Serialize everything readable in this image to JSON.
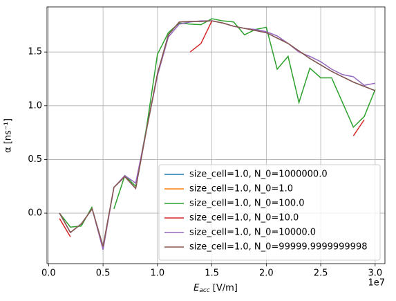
{
  "chart_data": {
    "type": "line",
    "ylabel": "α [ns⁻¹]",
    "xlabel": {
      "symbol": "E",
      "subscript": "acc",
      "unit": "[V/m]"
    },
    "x_offset_text": "1e7",
    "x": [
      0.1,
      0.2,
      0.3,
      0.4,
      0.5,
      0.6,
      0.7,
      0.8,
      0.9,
      1.0,
      1.1,
      1.2,
      1.3,
      1.4,
      1.5,
      1.6,
      1.7,
      1.8,
      1.9,
      2.0,
      2.1,
      2.2,
      2.3,
      2.4,
      2.5,
      2.6,
      2.7,
      2.8,
      2.9,
      3.0
    ],
    "xlim": [
      -0.015,
      3.09
    ],
    "ylim": [
      -0.47,
      1.92
    ],
    "xticks": [
      {
        "value": 0,
        "label": "0.0"
      },
      {
        "value": 0.5,
        "label": "0.5"
      },
      {
        "value": 1,
        "label": "1.0"
      },
      {
        "value": 1.5,
        "label": "1.5"
      },
      {
        "value": 2,
        "label": "2.0"
      },
      {
        "value": 2.5,
        "label": "2.5"
      },
      {
        "value": 3,
        "label": "3.0"
      }
    ],
    "yticks": [
      {
        "value": 0,
        "label": "0.0"
      },
      {
        "value": 0.5,
        "label": "0.5"
      },
      {
        "value": 1,
        "label": "1.0"
      },
      {
        "value": 1.5,
        "label": "1.5"
      }
    ],
    "grid": true,
    "legend": "lower right",
    "series": [
      {
        "name": "size_cell=1.0, N_0=1000000.0",
        "color": "#1f77b4",
        "values": [
          0.0,
          -0.18,
          -0.1,
          0.04,
          -0.31,
          0.24,
          0.34,
          0.23,
          0.78,
          1.3,
          1.66,
          1.78,
          1.785,
          1.785,
          1.79,
          1.77,
          1.74,
          1.72,
          1.7,
          1.68,
          1.63,
          1.58,
          1.51,
          1.44,
          1.38,
          1.32,
          1.27,
          1.22,
          1.18,
          1.14
        ]
      },
      {
        "name": "size_cell=1.0, N_0=1.0",
        "color": "#ff7f0e",
        "values": [
          null,
          null,
          null,
          null,
          null,
          null,
          null,
          null,
          null,
          null,
          null,
          null,
          null,
          null,
          null,
          null,
          null,
          null,
          null,
          null,
          null,
          null,
          null,
          null,
          null,
          null,
          null,
          null,
          null,
          null
        ]
      },
      {
        "name": "size_cell=1.0, N_0=100.0",
        "color": "#2ca02c",
        "values": [
          0.0,
          -0.13,
          -0.12,
          0.06,
          null,
          0.04,
          0.35,
          0.25,
          0.8,
          1.48,
          1.68,
          1.77,
          1.76,
          1.755,
          1.81,
          1.79,
          1.78,
          1.66,
          1.71,
          1.73,
          1.34,
          1.46,
          1.03,
          1.35,
          1.26,
          1.26,
          1.03,
          0.8,
          0.9,
          1.15
        ]
      },
      {
        "name": "size_cell=1.0, N_0=10.0",
        "color": "#d62728",
        "values": [
          -0.05,
          -0.22,
          null,
          null,
          null,
          null,
          null,
          null,
          null,
          null,
          null,
          null,
          1.5,
          1.58,
          1.79,
          null,
          null,
          null,
          null,
          null,
          null,
          null,
          null,
          null,
          null,
          null,
          null,
          0.72,
          0.87,
          null
        ]
      },
      {
        "name": "size_cell=1.0, N_0=10000.0",
        "color": "#9467bd",
        "values": [
          0.0,
          -0.18,
          -0.1,
          0.04,
          -0.34,
          0.24,
          0.35,
          0.28,
          0.78,
          1.28,
          1.64,
          1.76,
          1.78,
          1.79,
          1.79,
          1.77,
          1.74,
          1.72,
          1.71,
          1.69,
          1.65,
          1.58,
          1.5,
          1.46,
          1.41,
          1.34,
          1.29,
          1.27,
          1.19,
          1.21
        ]
      },
      {
        "name": "size_cell=1.0, N_0=99999.9999999998",
        "color": "#8c564b",
        "values": [
          0.0,
          -0.18,
          -0.1,
          0.04,
          -0.31,
          0.24,
          0.34,
          0.23,
          0.78,
          1.3,
          1.66,
          1.78,
          1.785,
          1.785,
          1.79,
          1.77,
          1.74,
          1.72,
          1.7,
          1.68,
          1.63,
          1.58,
          1.51,
          1.44,
          1.38,
          1.32,
          1.27,
          1.22,
          1.18,
          1.14
        ]
      }
    ]
  }
}
